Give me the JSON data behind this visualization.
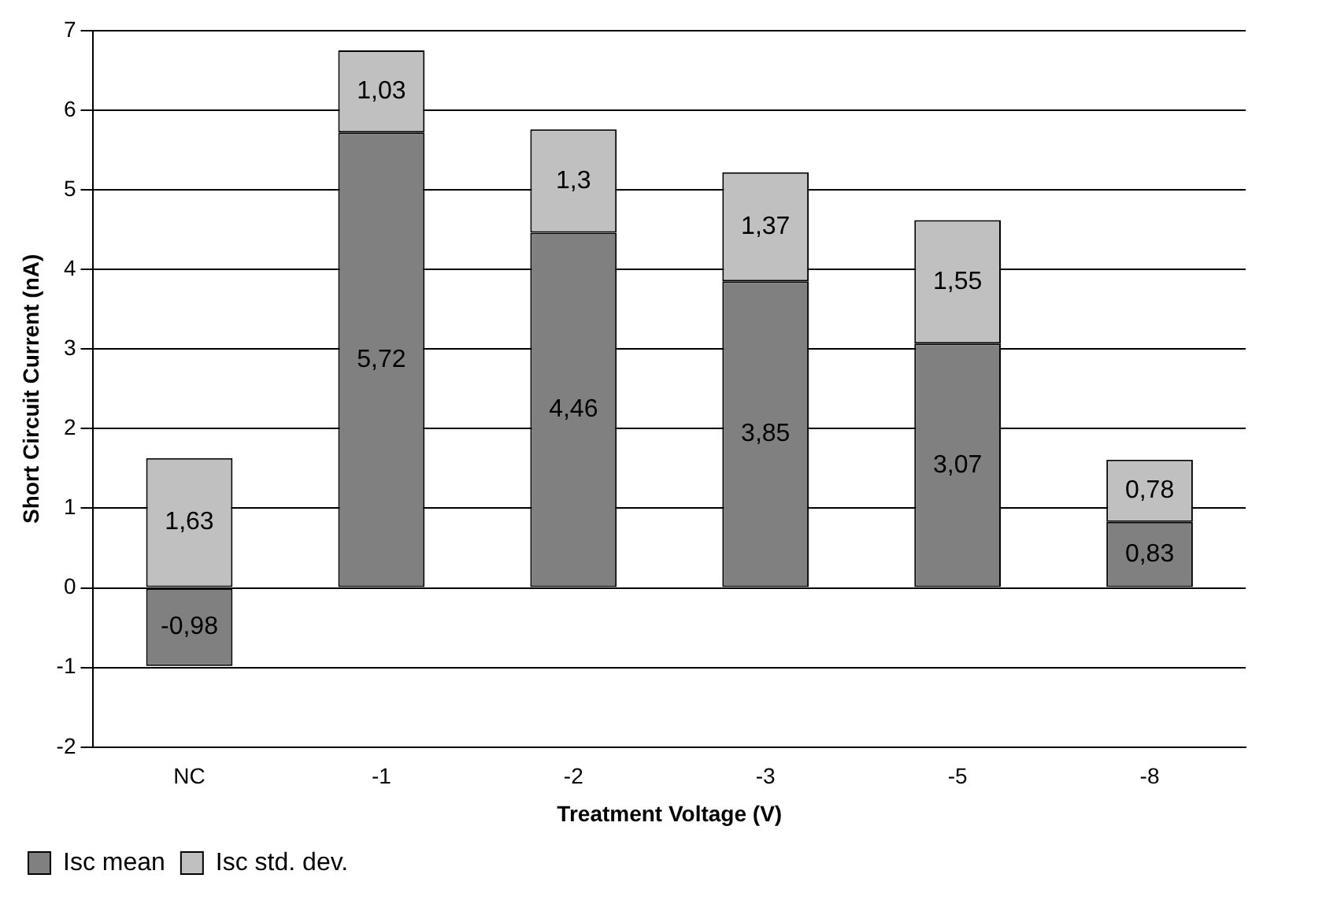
{
  "chart_data": {
    "type": "bar",
    "stacked": true,
    "xlabel": "Treatment Voltage (V)",
    "ylabel": "Short Circuit Current (nA)",
    "categories": [
      "NC",
      "-1",
      "-2",
      "-3",
      "-5",
      "-8"
    ],
    "series": [
      {
        "name": "Isc mean",
        "color": "#808080",
        "values": [
          -0.98,
          5.72,
          4.46,
          3.85,
          3.07,
          0.83
        ],
        "value_labels": [
          "-0,98",
          "5,72",
          "4,46",
          "3,85",
          "3,07",
          "0,83"
        ]
      },
      {
        "name": "Isc std. dev.",
        "color": "#c0c0c0",
        "values": [
          1.63,
          1.03,
          1.3,
          1.37,
          1.55,
          0.78
        ],
        "value_labels": [
          "1,63",
          "1,03",
          "1,3",
          "1,37",
          "1,55",
          "0,78"
        ]
      }
    ],
    "ylim": [
      -2,
      7
    ],
    "yticks": [
      -2,
      -1,
      0,
      1,
      2,
      3,
      4,
      5,
      6,
      7
    ],
    "grid": "y",
    "legend": "bottom left"
  }
}
